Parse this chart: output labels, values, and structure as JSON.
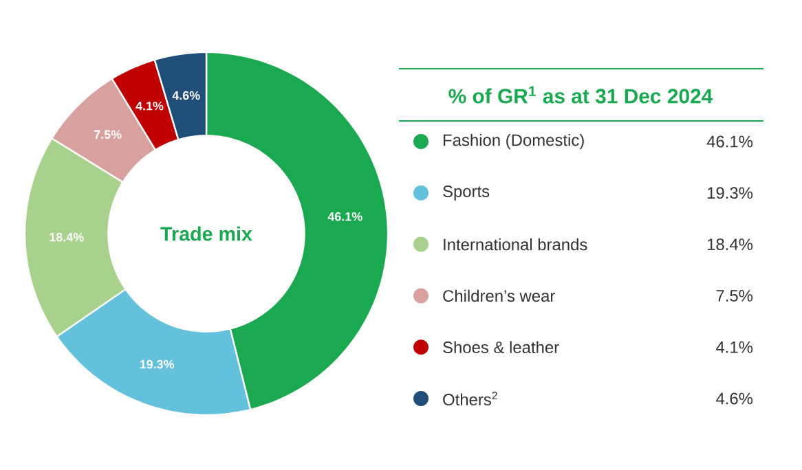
{
  "chart_data": {
    "type": "donut",
    "legend_title": "% of GR$^{1}$ as at 31 Dec 2024",
    "categories": [
      "Fashion (Domestic)",
      "Sports",
      "International brands",
      "Children’s wear",
      "Shoes & leather",
      "Others$^{2}$"
    ],
    "values": [
      46.1,
      19.3,
      18.4,
      7.5,
      4.1,
      4.6
    ],
    "colors": [
      "#1aa850",
      "#63c1dc",
      "#a9d18e",
      "#d9a0a0",
      "#c00000",
      "#1f4e79"
    ],
    "annotations": [
      "Trade mix"
    ],
    "value_labels": [
      "46.1%",
      "19.3%",
      "18.4%",
      "7.5%",
      "4.1%",
      "4.6%"
    ],
    "legend": "right"
  }
}
